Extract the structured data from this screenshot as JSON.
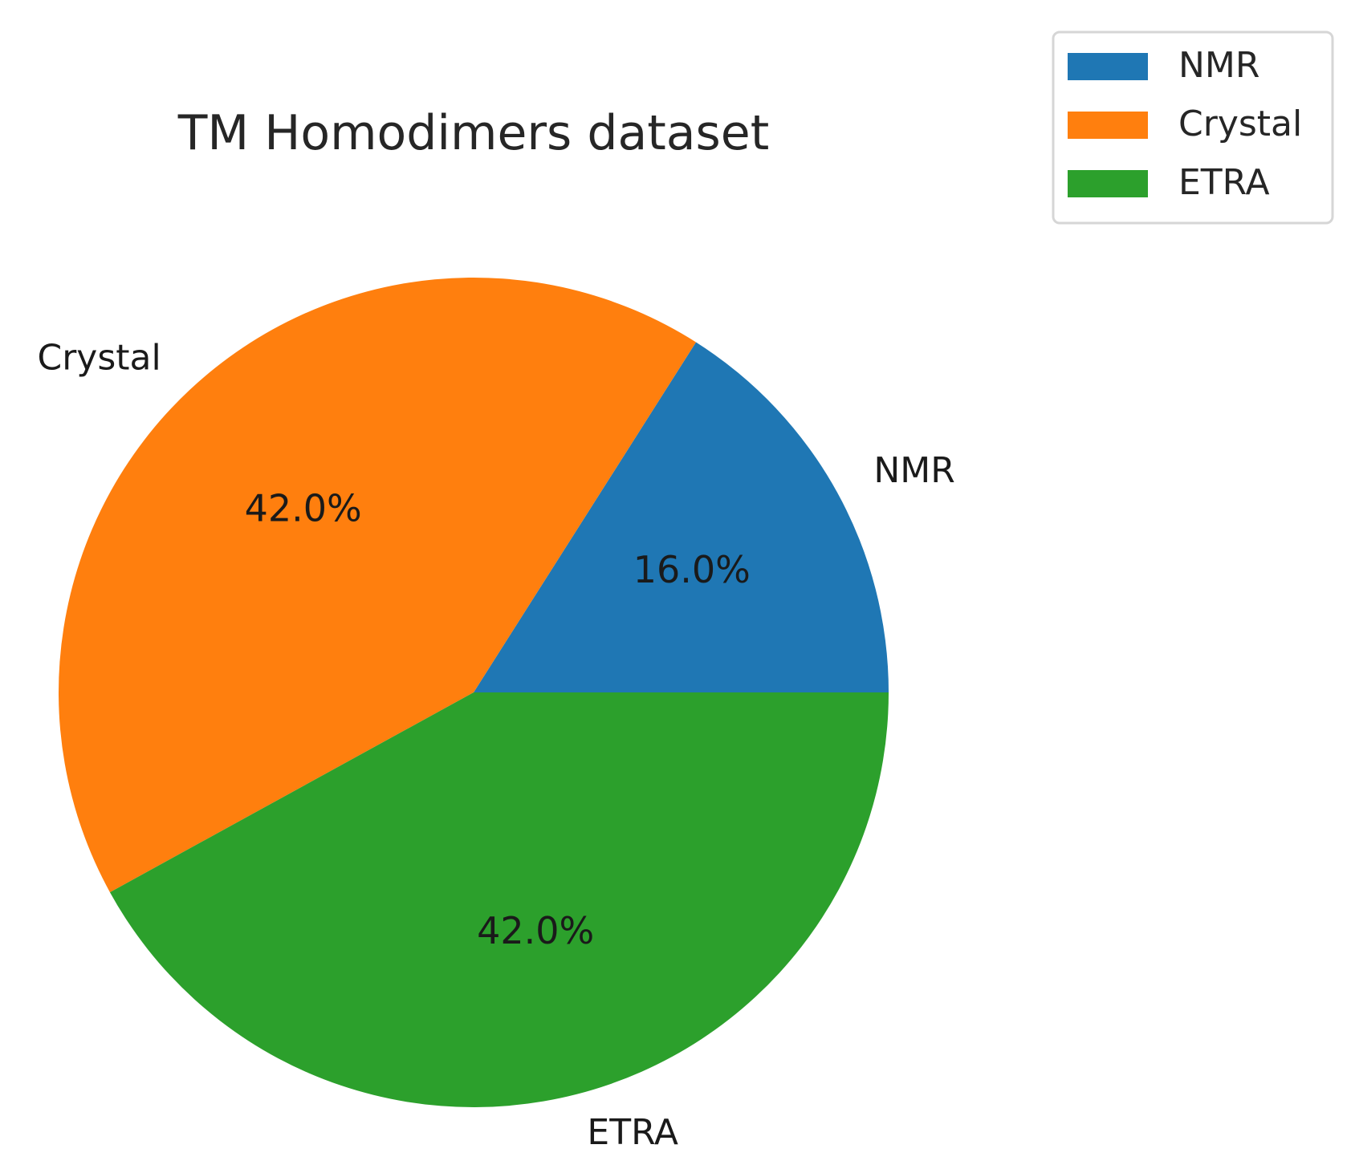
{
  "chart_data": {
    "type": "pie",
    "title": "TM Homodimers dataset",
    "start_angle": 0,
    "direction": "counterclockwise",
    "slices": [
      {
        "label": "NMR",
        "value": 16.0,
        "pct_label": "16.0%",
        "color": "#1f77b4"
      },
      {
        "label": "Crystal",
        "value": 42.0,
        "pct_label": "42.0%",
        "color": "#ff7f0e"
      },
      {
        "label": "ETRA",
        "value": 42.0,
        "pct_label": "42.0%",
        "color": "#2ca02c"
      }
    ],
    "legend": {
      "position": "top-right",
      "entries": [
        "NMR",
        "Crystal",
        "ETRA"
      ]
    }
  }
}
